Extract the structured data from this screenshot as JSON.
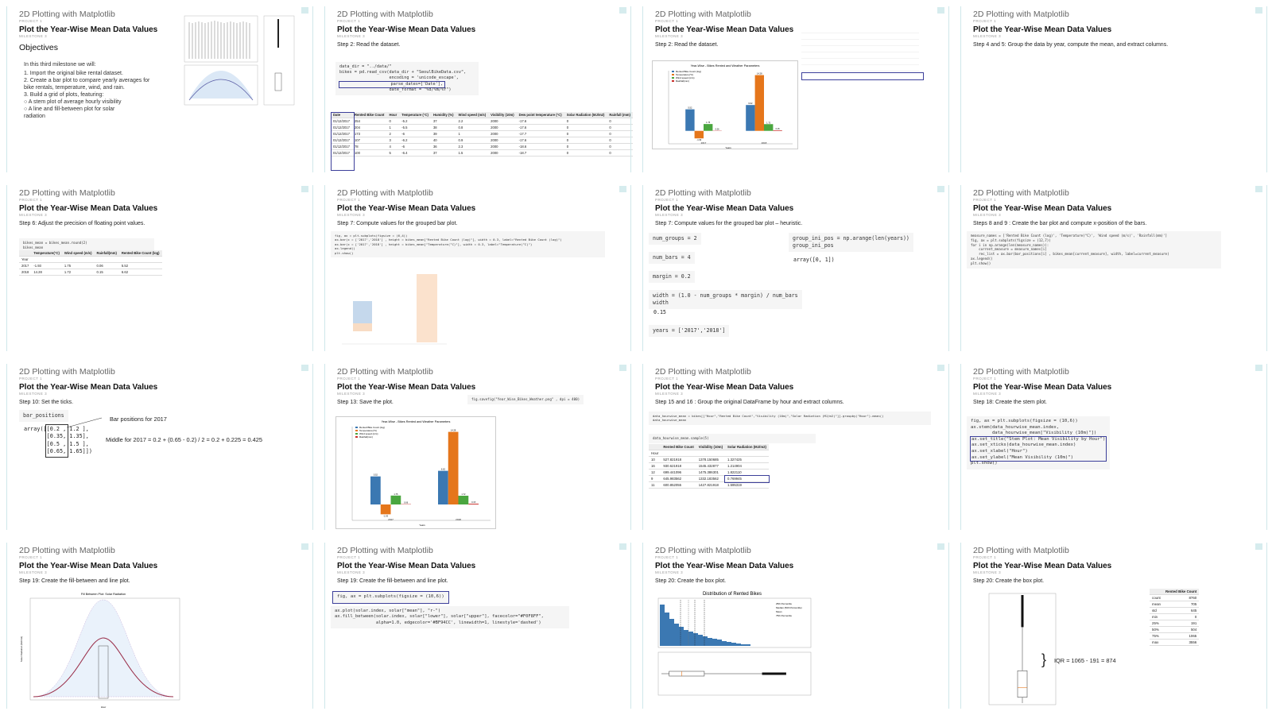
{
  "header": {
    "course": "2D Plotting with Matplotlib",
    "project": "PROJECT 1",
    "title": "Plot the Year-Wise Mean Data Values",
    "milestone": "MILESTONE 3"
  },
  "slides": {
    "s1": {
      "heading": "Objectives",
      "intro": "In this third milestone we will:",
      "items": [
        "1.   Import the original bike rental dataset.",
        "2.   Create a bar plot to compare yearly averages for",
        "      bike rentals, temperature, wind, and rain.",
        "3.   Build a grid of plots, featuring:",
        "      ○   A stem plot of average hourly visibility",
        "      ○   A line and fill-between plot for solar",
        "            radiation"
      ]
    },
    "s2": {
      "step": "Step 2: Read the dataset.",
      "code": [
        "data_dir = \"../data/\"",
        "bikes = pd.read_csv(data_dir + \"SeoulBikeData.csv\",",
        "                    encoding = 'unicode_escape',",
        "                    parse_dates=['Date'],",
        "                    date_format = \"%d/%m/%Y\")"
      ],
      "table_head": [
        "Date",
        "Rented Bike Count",
        "Hour",
        "Temperature (°C)",
        "Humidity (%)",
        "Wind speed (m/s)",
        "Visibility (10m)",
        "Dew point temperature (°C)",
        "Solar Radiation (MJ/m2)",
        "Rainfall (mm)"
      ],
      "table_rows": [
        [
          "01/12/2017",
          "254",
          "0",
          "-5.2",
          "37",
          "2.2",
          "2000",
          "-17.6",
          "0",
          "0"
        ],
        [
          "01/12/2017",
          "204",
          "1",
          "-5.5",
          "38",
          "0.8",
          "2000",
          "-17.6",
          "0",
          "0"
        ],
        [
          "01/12/2017",
          "173",
          "2",
          "-6",
          "39",
          "1",
          "2000",
          "-17.7",
          "0",
          "0"
        ],
        [
          "01/12/2017",
          "107",
          "3",
          "-6.2",
          "40",
          "0.9",
          "2000",
          "-17.6",
          "0",
          "0"
        ],
        [
          "01/12/2017",
          "78",
          "4",
          "-6",
          "36",
          "2.3",
          "2000",
          "-18.6",
          "0",
          "0"
        ],
        [
          "01/12/2017",
          "100",
          "5",
          "-6.4",
          "37",
          "1.5",
          "2000",
          "-18.7",
          "0",
          "0"
        ]
      ]
    },
    "s3": {
      "step": "Step 2: Read the dataset.",
      "chart_title": "Year-Wise - Bikes Rented and Weather Parameters",
      "legend": [
        "Rented Bike Count (log)",
        "Temperature(°C)",
        "Wind speed (m/s)",
        "Rainfall(mm)"
      ],
      "xlabel": "Years",
      "ylabel": "Mean Values"
    },
    "s4": {
      "step": "Step 4 and 5: Group the data by year,  compute the mean, and extract columns."
    },
    "s5": {
      "step": "Step 6: Adjust the precision of floating point values.",
      "code": [
        "bikes_mean = bikes_mean.round(2)",
        "bikes_mean"
      ],
      "head": [
        "",
        "Temperature(°C)",
        "Wind speed (m/s)",
        "Rainfall(mm)",
        "Rented Bike Count (log)"
      ],
      "rows": [
        [
          "Year",
          "",
          "",
          "",
          ""
        ],
        [
          "2017",
          "-1.93",
          "1.75",
          "0.06",
          "5.52"
        ],
        [
          "2018",
          "14.28",
          "1.72",
          "0.15",
          "6.62"
        ]
      ]
    },
    "s6": {
      "step": "Step 7: Compute values for the grouped bar plot.",
      "code": [
        "fig, ax = plt.subplots(figsize = (6,4))",
        "ax.bar(x = ['2017','2018'] , height = bikes_mean[\"Rented Bike Count (log)\"], width = 0.3, label=\"Rented Bike Count (log)\")",
        "ax.bar(x = ['2017','2018'] , height = bikes_mean[\"Temperature(°C)\"], width = 0.3, label=\"Temperature(°C)\")",
        "ax.legend()",
        "plt.show()"
      ]
    },
    "s7": {
      "step": "Step 7: Compute values for the grouped bar plot – heuristic.",
      "cells": [
        "num_groups = 2",
        "num_bars = 4",
        "margin = 0.2",
        "width = (1.0 - num_groups * margin) / num_bars\nwidth",
        "0.15",
        "years = ['2017','2018']"
      ],
      "right": [
        "group_ini_pos = np.arange(len(years))\ngroup_ini_pos",
        "array([0, 1])"
      ]
    },
    "s8": {
      "step": "Steps 8 and 9 : Create the bar plot and compute x-position of the bars.",
      "code": [
        "measure_names = ['Rented Bike Count (log)', 'Temperature(°C)', 'Wind speed (m/s)', 'Rainfall(mm)']",
        "fig, ax = plt.subplots(figsize = (12,7))",
        "for i in np.arange(len(measure_names)):",
        "    current_measure = measure_names[i]",
        "    rec_list = ax.bar(bar_positions[i] , bikes_mean[current_measure], width, label=current_measure)",
        "ax.legend()",
        "plt.show()"
      ]
    },
    "s9": {
      "step": "Step 10: Set the ticks.",
      "var": "bar_positions",
      "array": [
        "array([[0.2 , 1.2 ],",
        "       [0.35, 1.35],",
        "       [0.5 , 1.5 ],",
        "       [0.65, 1.65]])"
      ],
      "note1": "Bar positions for 2017",
      "note2": "Middle for 2017  = 0.2 + (0.65 - 0.2) / 2 = 0.2 + 0.225 = 0.425"
    },
    "s10": {
      "step": "Step 13: Save the plot.",
      "code": "fig.savefig(\"Year_Wise_Bikes_Weather.png\" , dpi = 400)"
    },
    "s11": {
      "step": "Step 15 and 16 : Group the original DataFrame by hour and extract columns.",
      "code1": [
        "data_hourwise_mean = bikes[[\"Hour\",\"Rented Bike Count\",\"Visibility (10m)\",\"Solar Radiation (MJ/m2)\"]].groupby(\"Hour\").mean()",
        "data_hourwise_mean"
      ],
      "code2": "data_hourwise_mean.sample(5)",
      "head": [
        "",
        "Rented Bike Count",
        "Visibility (10m)",
        "Solar Radiation (MJ/m2)"
      ],
      "rows": [
        [
          "Hour",
          "",
          "",
          ""
        ],
        [
          "10",
          "527.821918",
          "1378.150685",
          "1.327425"
        ],
        [
          "16",
          "930.621918",
          "1545.432877",
          "1.214904"
        ],
        [
          "12",
          "699.441096",
          "1475.386301",
          "1.822110"
        ],
        [
          "9",
          "645.983562",
          "1332.183562",
          "0.769945"
        ],
        [
          "11",
          "600.852055",
          "1427.821918",
          "1.595319"
        ]
      ]
    },
    "s12": {
      "step": "Step 18: Create the stem plot.",
      "code": [
        "fig, ax = plt.subplots(figsize = (10,6))",
        "ax.stem(data_hourwise_mean.index,",
        "        data_hourwise_mean[\"Visibility (10m)\"])",
        "ax.set_title(\"Stem Plot: Mean Visibility by Hour\")",
        "ax.set_xticks(data_hourwise_mean.index)",
        "ax.set_xlabel(\"Hour\")",
        "ax.set_ylabel(\"Mean Visibility (10m)\")",
        "plt.show()"
      ]
    },
    "s13": {
      "step": "Step 19: Create the fill-between and line plot.",
      "chart_title": "Fill Between Plot: Solar Radiation",
      "ylabel": "Solar Radiation (MJ/m2)",
      "xlabel": "Hour"
    },
    "s14": {
      "step": "Step 19: Create the fill-between and line plot.",
      "code1": "fig, ax = plt.subplots(figsize = (10,6))",
      "code2": [
        "ax.plot(solar.index, solar[\"mean\"], \"r-\")",
        "",
        "ax.fill_between(solar.index, solar[\"lower\"], solar[\"upper\"], facecolor=\"#F0F8FF\",",
        "                alpha=1.0, edgecolor='#BF94CC', linewidth=1, linestyle='dashed')"
      ]
    },
    "s15": {
      "step": "Step 20: Create the box plot.",
      "chart_title": "Distribution of Rented Bikes",
      "legend": [
        "25th Percentile",
        "Median (50th Percentile)",
        "Mean",
        "75th Percentile"
      ]
    },
    "s16": {
      "step": "Step 20: Create the box plot.",
      "iqr": "IQR = 1065 - 191 = 874",
      "stats_head": "Rented Bike Count",
      "stats": [
        [
          "count",
          "8760"
        ],
        [
          "mean",
          "705"
        ],
        [
          "std",
          "645"
        ],
        [
          "min",
          "0"
        ],
        [
          "25%",
          "191"
        ],
        [
          "50%",
          "504"
        ],
        [
          "75%",
          "1065"
        ],
        [
          "max",
          "3556"
        ]
      ]
    }
  },
  "chart_data": [
    {
      "type": "bar",
      "title": "Year-Wise - Bikes Rented and Weather Parameters",
      "categories": [
        "2017",
        "2018"
      ],
      "series": [
        {
          "name": "Rented Bike Count (log)",
          "values": [
            5.52,
            6.62
          ]
        },
        {
          "name": "Temperature(°C)",
          "values": [
            -1.93,
            14.28
          ]
        },
        {
          "name": "Wind speed (m/s)",
          "values": [
            1.75,
            1.72
          ]
        },
        {
          "name": "Rainfall(mm)",
          "values": [
            0.06,
            0.15
          ]
        }
      ],
      "xlabel": "Years",
      "ylabel": "Mean Values",
      "ylim": [
        -2.5,
        15
      ]
    },
    {
      "type": "box",
      "title": "Distribution of Rented Bikes",
      "stats": {
        "min": 0,
        "q1": 191,
        "median": 504,
        "mean": 705,
        "q3": 1065,
        "max": 3556
      }
    }
  ],
  "colors": {
    "accent": "#3c3f9a",
    "blue": "#3b78b2",
    "orange": "#e5761b",
    "green": "#4aa63f",
    "red": "#c9302c",
    "teal_line": "#cfe7ea"
  }
}
